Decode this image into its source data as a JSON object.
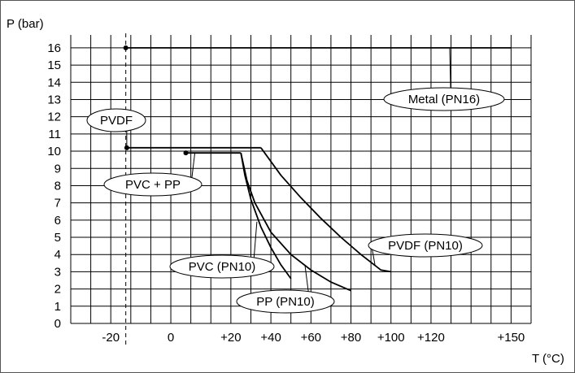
{
  "chart_data": {
    "type": "line",
    "title": "",
    "ylabel": "P (bar)",
    "xlabel": "T (°C)",
    "x_ticks": [
      {
        "value": -20,
        "label": "-20"
      },
      {
        "value": 0,
        "label": "0"
      },
      {
        "value": 20,
        "label": "+20"
      },
      {
        "value": 40,
        "label": "+40"
      },
      {
        "value": 60,
        "label": "+60"
      },
      {
        "value": 80,
        "label": "+80"
      },
      {
        "value": 100,
        "label": "+100"
      },
      {
        "value": 120,
        "label": "+120"
      },
      {
        "value": 150,
        "label": "+150"
      }
    ],
    "y_ticks": [
      {
        "value": 0,
        "label": "0"
      },
      {
        "value": 1,
        "label": "1"
      },
      {
        "value": 2,
        "label": "2"
      },
      {
        "value": 3,
        "label": "3"
      },
      {
        "value": 4,
        "label": "4"
      },
      {
        "value": 5,
        "label": "5"
      },
      {
        "value": 6,
        "label": "6"
      },
      {
        "value": 7,
        "label": "7"
      },
      {
        "value": 8,
        "label": "8"
      },
      {
        "value": 9,
        "label": "9"
      },
      {
        "value": 10,
        "label": "10"
      },
      {
        "value": 11,
        "label": "11"
      },
      {
        "value": 12,
        "label": "12"
      },
      {
        "value": 13,
        "label": "13"
      },
      {
        "value": 14,
        "label": "14"
      },
      {
        "value": 15,
        "label": "15"
      },
      {
        "value": 16,
        "label": "16"
      }
    ],
    "ylim": [
      0,
      16
    ],
    "grid": true,
    "reference_line_x": -15,
    "series": [
      {
        "name": "Metal (PN16)",
        "points": [
          [
            -15,
            16
          ],
          [
            150,
            16
          ]
        ]
      },
      {
        "name": "PVDF",
        "points": [
          [
            -15,
            10.2
          ],
          [
            35,
            10.2
          ]
        ]
      },
      {
        "name": "PVDF (PN10)",
        "points": [
          [
            35,
            10.2
          ],
          [
            45,
            8.6
          ],
          [
            55,
            7.3
          ],
          [
            65,
            6.1
          ],
          [
            75,
            5.0
          ],
          [
            85,
            4.0
          ],
          [
            95,
            3.1
          ],
          [
            100,
            3.0
          ]
        ]
      },
      {
        "name": "PVC + PP",
        "points": [
          [
            5,
            9.9
          ],
          [
            25,
            9.9
          ]
        ]
      },
      {
        "name": "PVC (PN10)",
        "points": [
          [
            25,
            9.9
          ],
          [
            27,
            8.6
          ],
          [
            30,
            7.2
          ],
          [
            35,
            5.6
          ],
          [
            40,
            4.4
          ],
          [
            45,
            3.4
          ],
          [
            50,
            2.6
          ]
        ]
      },
      {
        "name": "PP (PN10)",
        "points": [
          [
            25,
            9.9
          ],
          [
            28,
            8.3
          ],
          [
            32,
            7.0
          ],
          [
            40,
            5.3
          ],
          [
            50,
            4.0
          ],
          [
            60,
            3.1
          ],
          [
            70,
            2.4
          ],
          [
            80,
            1.9
          ]
        ]
      }
    ],
    "markers": [
      [
        -15,
        16
      ],
      [
        -14,
        10.2
      ],
      [
        5,
        9.9
      ]
    ],
    "annotations": [
      {
        "text": "Metal (PN16)",
        "target": [
          127,
          16
        ]
      },
      {
        "text": "PVDF",
        "target": [
          -14,
          10.2
        ]
      },
      {
        "text": "PVC + PP",
        "target": [
          8,
          9.9
        ]
      },
      {
        "text": "PVDF (PN10)",
        "target": [
          92,
          3.4
        ]
      },
      {
        "text": "PVC (PN10)",
        "target": [
          33,
          5.9
        ]
      },
      {
        "text": "PP (PN10)",
        "target": [
          57,
          3.4
        ]
      }
    ]
  }
}
